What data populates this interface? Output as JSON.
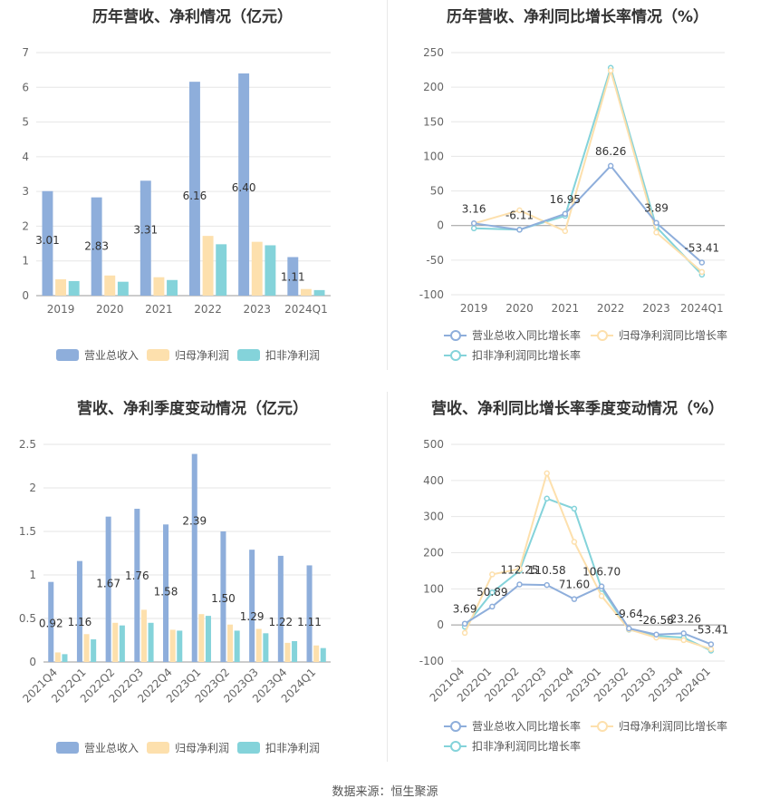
{
  "source": "数据来源：恒生聚源",
  "chart_data": [
    {
      "type": "bar",
      "title": "历年营收、净利情况（亿元）",
      "categories": [
        "2019",
        "2020",
        "2021",
        "2022",
        "2023",
        "2024Q1"
      ],
      "ylim": [
        0,
        7
      ],
      "yticks": [
        0,
        1,
        2,
        3,
        4,
        5,
        6,
        7
      ],
      "grid": true,
      "legend_position": "bottom",
      "series": [
        {
          "name": "营业总收入",
          "color": "#8eaedb",
          "values": [
            3.01,
            2.83,
            3.31,
            6.16,
            6.4,
            1.11
          ],
          "labels": [
            "3.01",
            "2.83",
            "3.31",
            "6.16",
            "6.40",
            "1.11"
          ]
        },
        {
          "name": "归母净利润",
          "color": "#fde0ad",
          "values": [
            0.47,
            0.58,
            0.53,
            1.72,
            1.55,
            0.19
          ]
        },
        {
          "name": "扣非净利润",
          "color": "#84d3da",
          "values": [
            0.42,
            0.4,
            0.45,
            1.48,
            1.45,
            0.16
          ]
        }
      ]
    },
    {
      "type": "line",
      "title": "历年营收、净利同比增长率情况（%）",
      "categories": [
        "2019",
        "2020",
        "2021",
        "2022",
        "2023",
        "2024Q1"
      ],
      "ylim": [
        -100,
        250
      ],
      "yticks": [
        -100,
        -50,
        0,
        50,
        100,
        150,
        200,
        250
      ],
      "grid": true,
      "legend_position": "bottom",
      "series": [
        {
          "name": "营业总收入同比增长率",
          "color": "#8eaedb",
          "values": [
            3.16,
            -6.11,
            16.95,
            86.26,
            3.89,
            -53.41
          ],
          "labels": [
            "3.16",
            "-6.11",
            "16.95",
            "86.26",
            "3.89",
            "-53.41"
          ]
        },
        {
          "name": "归母净利润同比增长率",
          "color": "#fde0ad",
          "values": [
            3,
            22,
            -8,
            224,
            -10,
            -67
          ]
        },
        {
          "name": "扣非净利润同比增长率",
          "color": "#84d3da",
          "values": [
            -4,
            -6,
            14,
            228,
            -2,
            -71
          ]
        }
      ]
    },
    {
      "type": "bar",
      "title": "营收、净利季度变动情况（亿元）",
      "categories": [
        "2021Q4",
        "2022Q1",
        "2022Q2",
        "2022Q3",
        "2022Q4",
        "2023Q1",
        "2023Q2",
        "2023Q3",
        "2023Q4",
        "2024Q1"
      ],
      "ylim": [
        0,
        2.5
      ],
      "yticks": [
        0,
        0.5,
        1,
        1.5,
        2,
        2.5
      ],
      "ytick_labels": [
        "0",
        "0.5",
        "1",
        "1.5",
        "2",
        "2.5"
      ],
      "grid": true,
      "legend_position": "bottom",
      "series": [
        {
          "name": "营业总收入",
          "color": "#8eaedb",
          "values": [
            0.92,
            1.16,
            1.67,
            1.76,
            1.58,
            2.39,
            1.5,
            1.29,
            1.22,
            1.11
          ],
          "labels": [
            "0.92",
            "1.16",
            "1.67",
            "1.76",
            "1.58",
            "2.39",
            "1.50",
            "1.29",
            "1.22",
            "1.11"
          ]
        },
        {
          "name": "归母净利润",
          "color": "#fde0ad",
          "values": [
            0.11,
            0.32,
            0.45,
            0.6,
            0.37,
            0.55,
            0.43,
            0.38,
            0.22,
            0.19
          ]
        },
        {
          "name": "扣非净利润",
          "color": "#84d3da",
          "values": [
            0.09,
            0.26,
            0.42,
            0.45,
            0.36,
            0.53,
            0.36,
            0.33,
            0.24,
            0.16
          ]
        }
      ]
    },
    {
      "type": "line",
      "title": "营收、净利同比增长率季度变动情况（%）",
      "categories": [
        "2021Q4",
        "2022Q1",
        "2022Q2",
        "2022Q3",
        "2022Q4",
        "2023Q1",
        "2023Q2",
        "2023Q3",
        "2023Q4",
        "2024Q1"
      ],
      "ylim": [
        -100,
        500
      ],
      "yticks": [
        -100,
        0,
        100,
        200,
        300,
        400,
        500
      ],
      "grid": true,
      "legend_position": "bottom",
      "series": [
        {
          "name": "营业总收入同比增长率",
          "color": "#8eaedb",
          "values": [
            3.69,
            50.89,
            112.25,
            110.58,
            71.6,
            106.7,
            -9.64,
            -26.58,
            -23.26,
            -53.41
          ],
          "labels": [
            "3.69",
            "50.89",
            "112.25",
            "110.58",
            "71.60",
            "106.70",
            "-9.64",
            "-26.58",
            "-23.26",
            "-53.41"
          ]
        },
        {
          "name": "归母净利润同比增长率",
          "color": "#fde0ad",
          "values": [
            -22,
            140,
            155,
            420,
            230,
            80,
            -12,
            -35,
            -42,
            -67
          ]
        },
        {
          "name": "扣非净利润同比增长率",
          "color": "#84d3da",
          "values": [
            -5,
            90,
            150,
            350,
            322,
            100,
            -13,
            -30,
            -35,
            -71
          ]
        }
      ]
    }
  ]
}
